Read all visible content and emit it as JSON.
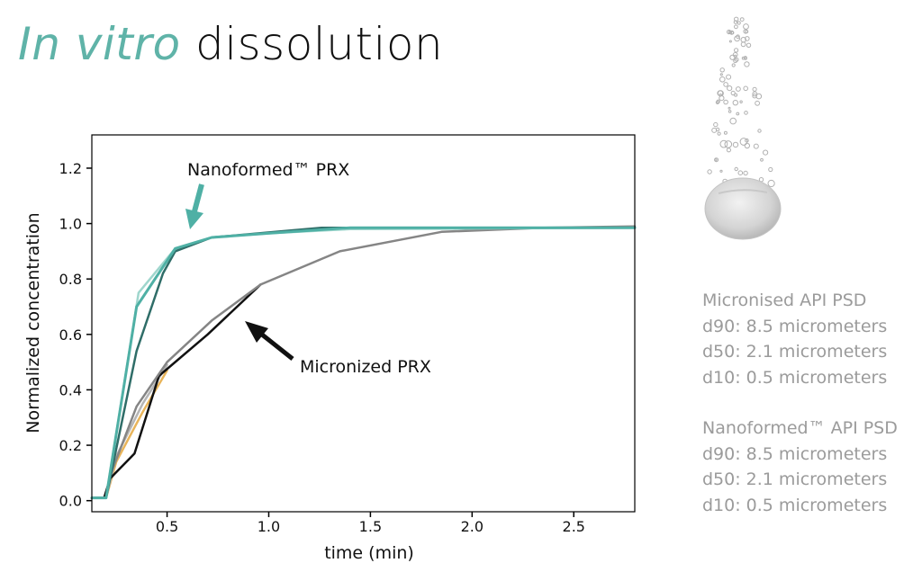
{
  "page": {
    "title_accent": "In vitro",
    "title_rest": "dissolution",
    "accent_color": "#5fb3a8"
  },
  "annotations": {
    "nanoformed": "Nanoformed™ PRX",
    "micronized": "Micronized PRX"
  },
  "psd_micronised": {
    "heading": "Micronised API PSD",
    "d90": "d90: 8.5 micrometers",
    "d50": "d50: 2.1 micrometers",
    "d10": "d10: 0.5 micrometers"
  },
  "psd_nanoformed": {
    "heading": "Nanoformed™ API PSD",
    "d90": "d90: 8.5 micrometers",
    "d50": "d50: 2.1 micrometers",
    "d10": "d10: 0.5 micrometers"
  },
  "chart_data": {
    "type": "line",
    "title": "",
    "xlabel": "time (min)",
    "ylabel": "Normalized concentration",
    "xlim": [
      0.13,
      2.8
    ],
    "ylim": [
      -0.04,
      1.32
    ],
    "x_ticks": [
      "0.5",
      "1.0",
      "1.5",
      "2.0",
      "2.5"
    ],
    "y_ticks": [
      "0.0",
      "0.2",
      "0.4",
      "0.6",
      "0.8",
      "1.0",
      "1.2"
    ],
    "grid": false,
    "legend": "none",
    "series": [
      {
        "color": "#e8b45a",
        "width": 2.5,
        "x": [
          0.13,
          0.2,
          0.25,
          0.38,
          0.5
        ],
        "y": [
          0.01,
          0.01,
          0.14,
          0.32,
          0.47
        ]
      },
      {
        "color": "#b5b5b5",
        "width": 2.5,
        "x": [
          0.13,
          0.2,
          0.25,
          0.38,
          0.5
        ],
        "y": [
          0.01,
          0.01,
          0.16,
          0.35,
          0.49
        ]
      },
      {
        "color": "#111111",
        "width": 2.5,
        "x": [
          0.13,
          0.19,
          0.22,
          0.34,
          0.46,
          0.7,
          0.96
        ],
        "y": [
          0.01,
          0.01,
          0.08,
          0.17,
          0.45,
          0.6,
          0.78
        ]
      },
      {
        "color": "#858585",
        "width": 2.5,
        "x": [
          0.22,
          0.35,
          0.5,
          0.72,
          0.96,
          1.35,
          1.85,
          2.35,
          2.8
        ],
        "y": [
          0.09,
          0.34,
          0.5,
          0.65,
          0.78,
          0.9,
          0.97,
          0.985,
          0.99
        ]
      },
      {
        "color": "#9fd6cd",
        "width": 2.5,
        "x": [
          0.13,
          0.2,
          0.36,
          0.54,
          0.72,
          1.0,
          1.4,
          2.8
        ],
        "y": [
          0.01,
          0.01,
          0.75,
          0.91,
          0.95,
          0.965,
          0.98,
          0.985
        ]
      },
      {
        "color": "#2f6d68",
        "width": 2.5,
        "x": [
          0.13,
          0.2,
          0.35,
          0.48,
          0.54,
          0.72,
          1.26,
          2.8
        ],
        "y": [
          0.01,
          0.01,
          0.54,
          0.82,
          0.9,
          0.95,
          0.985,
          0.985
        ]
      },
      {
        "color": "#4fb0a5",
        "width": 3,
        "x": [
          0.13,
          0.2,
          0.35,
          0.54,
          0.72,
          1.0,
          1.4,
          2.8
        ],
        "y": [
          0.01,
          0.01,
          0.7,
          0.91,
          0.95,
          0.965,
          0.985,
          0.985
        ]
      }
    ]
  }
}
